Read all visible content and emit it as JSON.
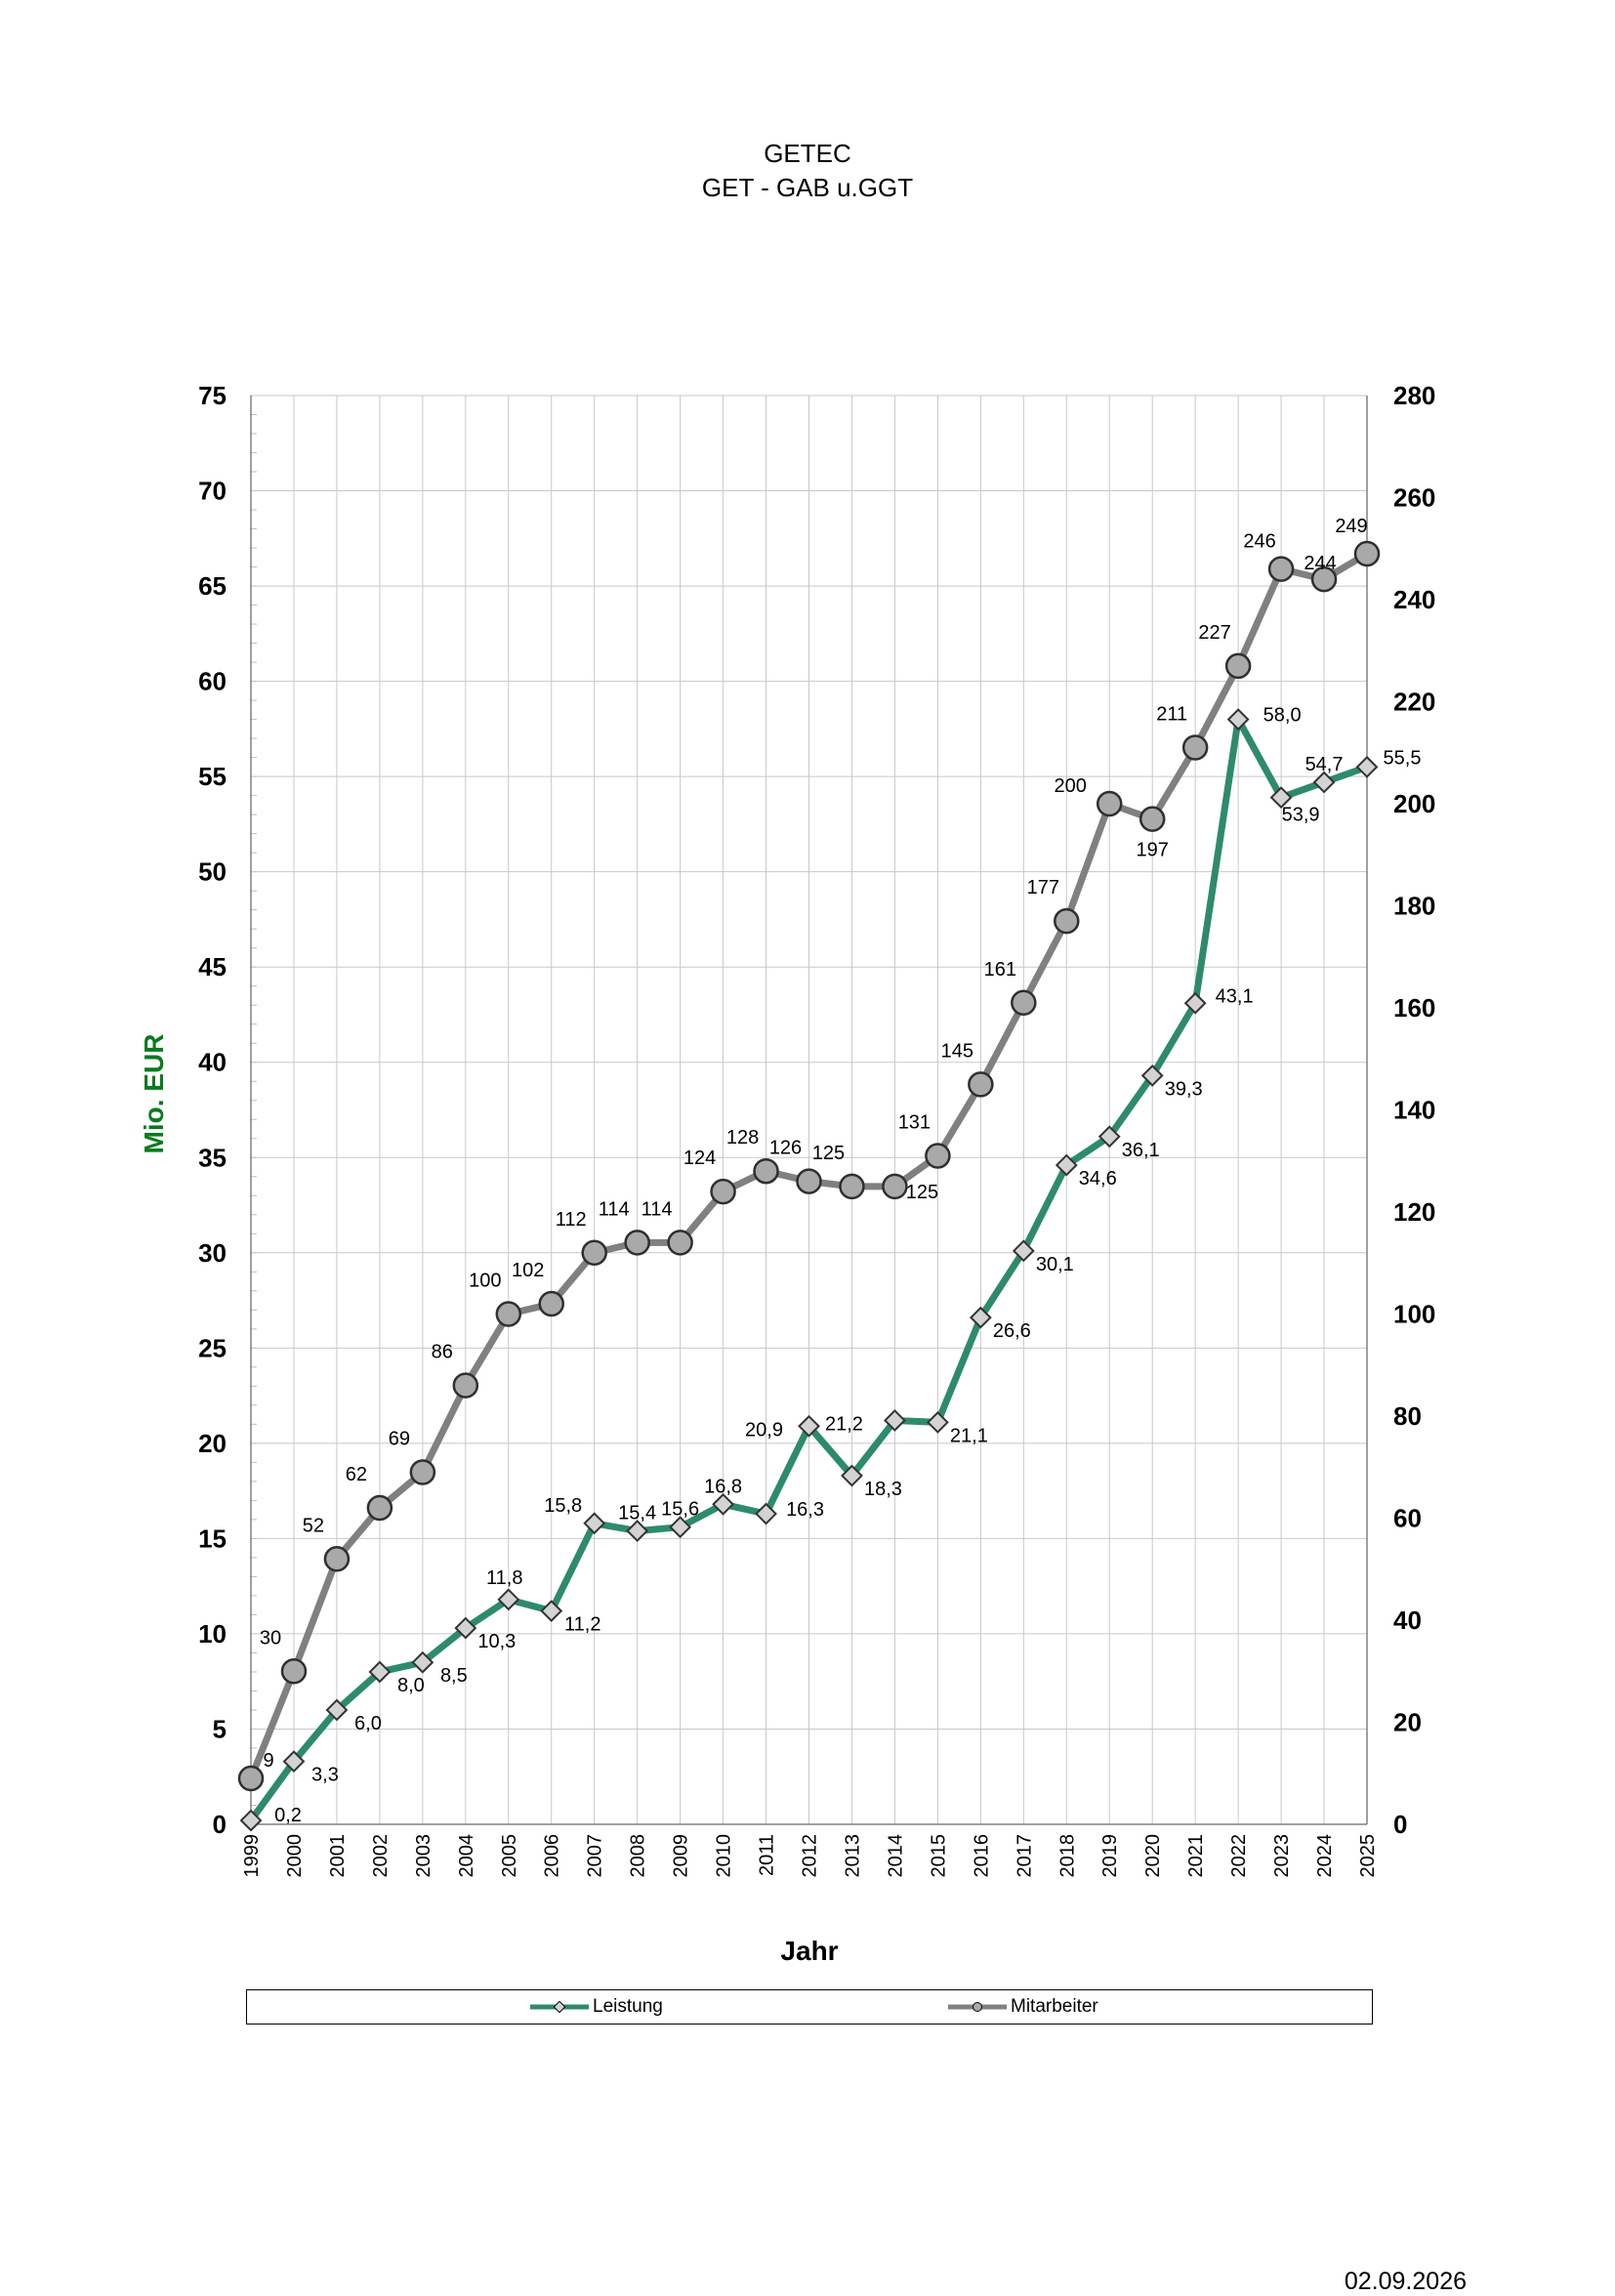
{
  "title": "GETEC",
  "subtitle": "GET - GAB u.GGT",
  "date": "02.09.2026",
  "chart_data": {
    "type": "line",
    "xlabel": "Jahr",
    "ylabel": "Mio. EUR",
    "ylabel_color": "#0a7a1f",
    "ylim": [
      0,
      75
    ],
    "y_ticks": [
      0,
      5,
      10,
      15,
      20,
      25,
      30,
      35,
      40,
      45,
      50,
      55,
      60,
      65,
      70,
      75
    ],
    "y2lim": [
      0,
      280
    ],
    "y2_ticks": [
      0,
      20,
      40,
      60,
      80,
      100,
      120,
      140,
      160,
      180,
      200,
      220,
      240,
      260,
      280
    ],
    "grid": true,
    "legend_position": "bottom",
    "categories": [
      "1999",
      "2000",
      "2001",
      "2002",
      "2003",
      "2004",
      "2005",
      "2006",
      "2007",
      "2008",
      "2009",
      "2010",
      "2011",
      "2012",
      "2013",
      "2014",
      "2015",
      "2016",
      "2017",
      "2018",
      "2019",
      "2020",
      "2021",
      "2022",
      "2023",
      "2024",
      "2025"
    ],
    "series": [
      {
        "name": "Leistung",
        "axis": "left",
        "color": "#2e8b6a",
        "marker": "diamond",
        "values": [
          0.2,
          3.3,
          6.0,
          8.0,
          8.5,
          10.3,
          11.8,
          11.2,
          15.8,
          15.4,
          15.6,
          16.8,
          16.3,
          20.9,
          18.3,
          21.2,
          21.1,
          26.6,
          30.1,
          34.6,
          36.1,
          39.3,
          43.1,
          58.0,
          53.9,
          54.7,
          55.5
        ],
        "labels": [
          "0,2",
          "3,3",
          "6,0",
          "8,0",
          "8,5",
          "10,3",
          "11,8",
          "11,2",
          "15,8",
          "15,4",
          "15,6",
          "16,8",
          "16,3",
          "20,9",
          "18,3",
          "21,2",
          "21,1",
          "26,6",
          "30,1",
          "34,6",
          "36,1",
          "39,3",
          "43,1",
          "58,0",
          "53,9",
          "54,7",
          "55,5"
        ]
      },
      {
        "name": "Mitarbeiter",
        "axis": "right",
        "color": "#808080",
        "marker": "circle",
        "values": [
          9,
          30,
          52,
          62,
          69,
          86,
          100,
          102,
          112,
          114,
          114,
          124,
          128,
          126,
          125,
          125,
          131,
          145,
          161,
          177,
          200,
          197,
          211,
          227,
          246,
          244,
          249
        ],
        "labels": [
          "9",
          "30",
          "52",
          "62",
          "69",
          "86",
          "100",
          "102",
          "112",
          "114",
          "114",
          "124",
          "128",
          "126",
          "125",
          "125",
          "131",
          "145",
          "161",
          "177",
          "200",
          "197",
          "211",
          "227",
          "246",
          "244",
          "249"
        ]
      }
    ]
  }
}
